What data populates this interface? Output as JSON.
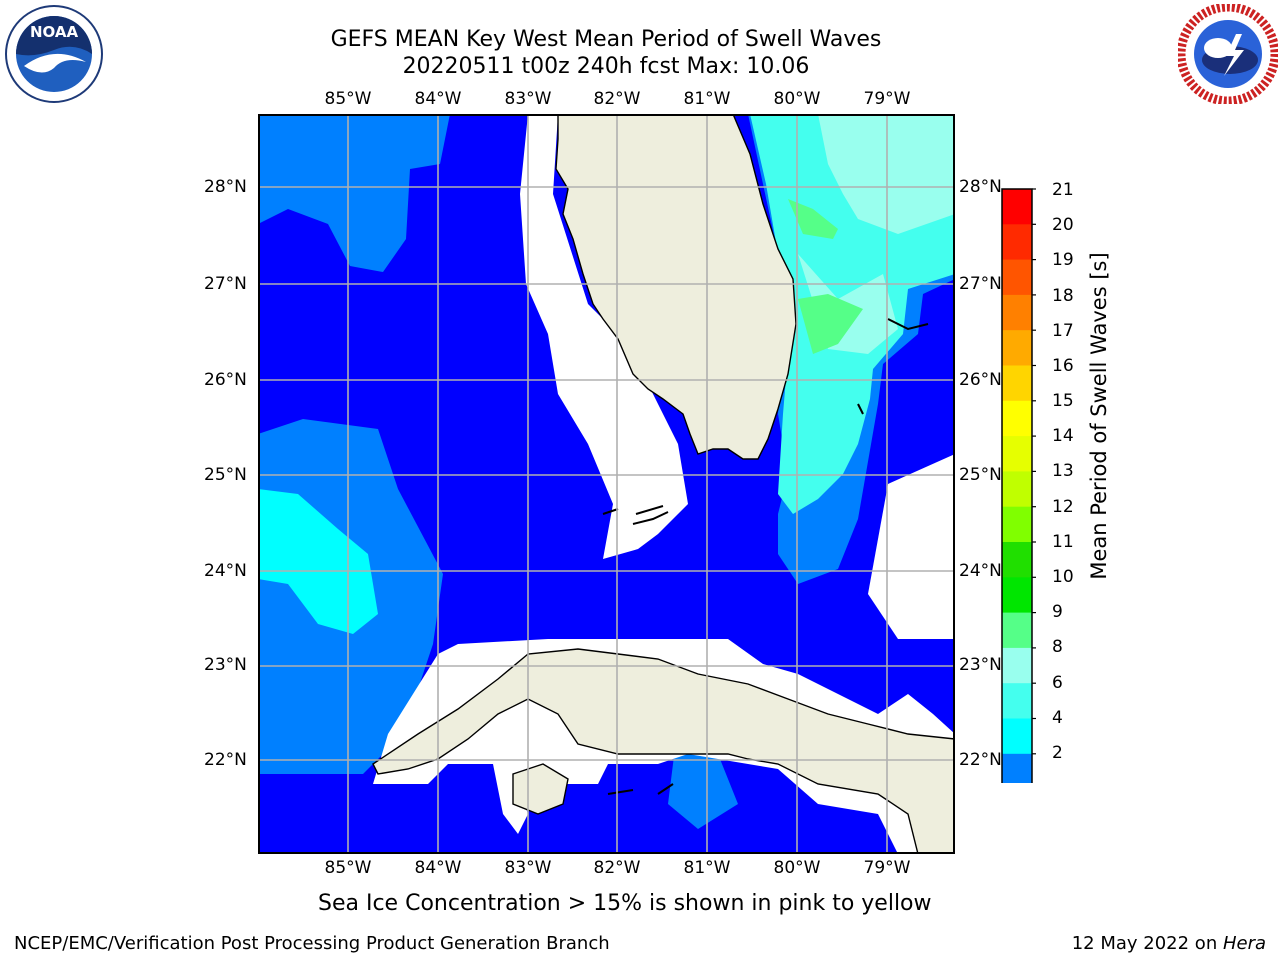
{
  "title": {
    "line1": "GEFS MEAN Key West Mean Period of Swell Waves",
    "line2": "20220511 t00z 240h fcst   Max: 10.06"
  },
  "logos": {
    "noaa_text": "NOAA",
    "noaa_ring": "NATIONAL OCEANIC AND ATMOSPHERIC ADMINISTRATION · U.S. DEPARTMENT OF COMMERCE",
    "nws_ring": "NATIONAL WEATHER SERVICE"
  },
  "map": {
    "lon_labels": [
      "85°W",
      "84°W",
      "83°W",
      "82°W",
      "81°W",
      "80°W",
      "79°W"
    ],
    "lat_labels": [
      "28°N",
      "27°N",
      "26°N",
      "25°N",
      "24°N",
      "23°N",
      "22°N"
    ],
    "ocean_color": "#0000ff",
    "land_color": "#eeeedd",
    "grid_color": "#b0b0b0"
  },
  "colorbar": {
    "label": "Mean Period of Swell Waves [s]",
    "ticks": [
      "21",
      "20",
      "19",
      "18",
      "17",
      "16",
      "15",
      "14",
      "13",
      "12",
      "11",
      "10",
      "9",
      "8",
      "6",
      "4",
      "2"
    ],
    "colors": [
      "#ff0000",
      "#ff2a00",
      "#ff5500",
      "#ff8000",
      "#ffaa00",
      "#ffd500",
      "#ffff00",
      "#e6ff00",
      "#c0ff00",
      "#80ff00",
      "#20df00",
      "#00e600",
      "#55ff88",
      "#99ffee",
      "#44ffee",
      "#00ffff",
      "#0080ff"
    ],
    "extend_color": "#0000ff"
  },
  "notes": {
    "sea_ice": "Sea Ice Concentration > 15% is shown in pink to yellow"
  },
  "footer": {
    "left": "NCEP/EMC/Verification Post Processing Product Generation Branch",
    "date": "12 May 2022 on ",
    "machine": "Hera"
  }
}
